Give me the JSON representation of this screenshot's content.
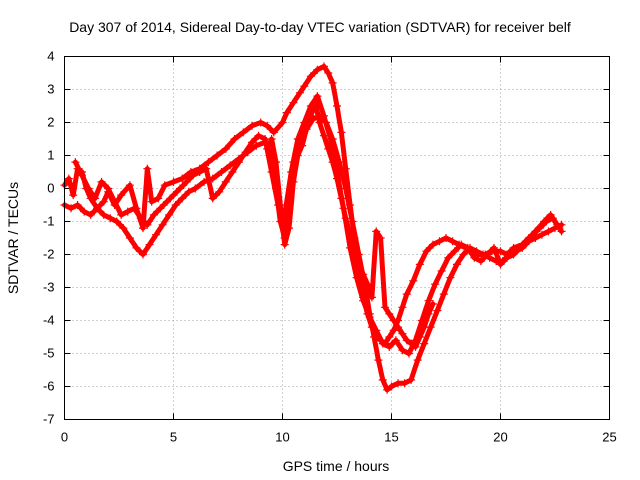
{
  "chart_data": {
    "type": "scatter",
    "title": "Day 307 of 2014, Sidereal Day-to-day VTEC variation (SDTVAR) for receiver belf",
    "xlabel": "GPS time / hours",
    "ylabel": "SDTVAR / TECUs",
    "xlim": [
      0,
      25
    ],
    "ylim": [
      -7,
      4
    ],
    "xticks": [
      "0",
      "5",
      "10",
      "15",
      "20",
      "25"
    ],
    "yticks": [
      "4",
      "3",
      "2",
      "1",
      "0",
      "-1",
      "-2",
      "-3",
      "-4",
      "-5",
      "-6",
      "-7"
    ],
    "grid": true,
    "marker": "plus",
    "color": "#ff0000",
    "series": [
      {
        "x": [
          0.0,
          0.2,
          0.4,
          0.6,
          0.8,
          1.0,
          1.2,
          1.5,
          1.8,
          2.0,
          2.3,
          2.6,
          3.0,
          3.3,
          3.6,
          3.8,
          4.0,
          4.3,
          4.6,
          5.0,
          5.4,
          5.8,
          6.2,
          6.6,
          7.0,
          7.4,
          7.8,
          8.2,
          8.6,
          9.0,
          9.3,
          9.6,
          10.0,
          10.2,
          10.5,
          10.8,
          11.0,
          11.3,
          11.6,
          11.9,
          12.1,
          12.3,
          12.5,
          12.7,
          12.9,
          13.1,
          13.3,
          13.5,
          13.7,
          13.9,
          14.1,
          14.3,
          14.5,
          14.7,
          14.9,
          15.1,
          15.3,
          15.5,
          15.7,
          16.0,
          16.3,
          16.6,
          16.9,
          17.2,
          17.5,
          17.8,
          18.1,
          18.4,
          18.7,
          19.0,
          19.3,
          19.6,
          20.0,
          20.3,
          20.6,
          21.0,
          21.3,
          21.6,
          22.0,
          22.3,
          22.6,
          22.8
        ],
        "y": [
          0.1,
          0.3,
          -0.2,
          0.6,
          0.5,
          0.0,
          -0.3,
          -0.6,
          -0.4,
          -0.1,
          -0.5,
          -0.2,
          0.1,
          -0.6,
          -1.2,
          0.6,
          -0.4,
          -0.3,
          0.1,
          0.2,
          0.3,
          0.5,
          0.6,
          0.8,
          1.0,
          1.2,
          1.5,
          1.7,
          1.9,
          2.0,
          1.9,
          1.7,
          2.0,
          2.3,
          2.6,
          2.9,
          3.1,
          3.4,
          3.6,
          3.7,
          3.5,
          3.2,
          2.5,
          1.7,
          0.6,
          -0.5,
          -1.5,
          -2.5,
          -3.3,
          -3.8,
          -4.2,
          -4.5,
          -4.6,
          -4.7,
          -4.5,
          -4.3,
          -4.0,
          -3.6,
          -3.2,
          -2.8,
          -2.3,
          -1.9,
          -1.7,
          -1.6,
          -1.5,
          -1.6,
          -1.7,
          -1.8,
          -1.9,
          -2.0,
          -2.0,
          -1.9,
          -1.9,
          -2.0,
          -1.8,
          -1.7,
          -1.5,
          -1.3,
          -1.0,
          -0.8,
          -1.1,
          -1.3
        ]
      },
      {
        "x": [
          0.0,
          0.3,
          0.6,
          0.9,
          1.2,
          1.5,
          1.8,
          2.1,
          2.4,
          2.7,
          3.0,
          3.3,
          3.6,
          3.9,
          4.2,
          4.5,
          4.8,
          5.1,
          5.4,
          5.7,
          6.0,
          6.4,
          6.8,
          7.2,
          7.6,
          8.0,
          8.4,
          8.8,
          9.2,
          9.5,
          9.7,
          9.9,
          10.1,
          10.3,
          10.5,
          10.8,
          11.1,
          11.4,
          11.7,
          12.0,
          12.3,
          12.6,
          12.9,
          13.2,
          13.5,
          13.8,
          14.0,
          14.2,
          14.4,
          14.6,
          14.8,
          15.0,
          15.3,
          15.6,
          15.9,
          16.2,
          16.5,
          16.8,
          17.1,
          17.4,
          17.7,
          18.0,
          18.3,
          18.6,
          18.9,
          19.2,
          19.5,
          19.8,
          20.1,
          20.4,
          20.7,
          21.0,
          21.3,
          21.6,
          21.9,
          22.2,
          22.5,
          22.8
        ],
        "y": [
          -0.5,
          -0.6,
          -0.5,
          -0.7,
          -0.8,
          -0.6,
          -0.8,
          -0.9,
          -1.0,
          -1.2,
          -1.5,
          -1.8,
          -2.0,
          -1.7,
          -1.4,
          -1.1,
          -0.8,
          -0.5,
          -0.3,
          -0.1,
          0.0,
          0.2,
          0.3,
          0.5,
          0.7,
          0.9,
          1.1,
          1.3,
          1.4,
          1.0,
          0.0,
          -1.0,
          -1.5,
          -0.3,
          0.8,
          1.4,
          1.8,
          2.1,
          2.2,
          2.0,
          1.5,
          0.8,
          0.0,
          -1.0,
          -2.0,
          -3.0,
          -3.8,
          -4.5,
          -5.2,
          -5.8,
          -6.1,
          -6.0,
          -5.9,
          -5.9,
          -5.8,
          -5.2,
          -4.7,
          -4.2,
          -3.7,
          -3.2,
          -2.7,
          -2.3,
          -2.0,
          -1.8,
          -1.9,
          -2.0,
          -2.1,
          -2.2,
          -2.2,
          -2.0,
          -1.9,
          -1.8,
          -1.6,
          -1.5,
          -1.4,
          -1.3,
          -1.2,
          -1.1
        ]
      },
      {
        "x": [
          0.5,
          0.8,
          1.1,
          1.4,
          1.7,
          2.0,
          2.3,
          2.6,
          2.9,
          3.2,
          3.5,
          3.8,
          4.1,
          4.4,
          4.7,
          5.0,
          5.3,
          5.6,
          5.9,
          6.2,
          6.5,
          6.8,
          7.1,
          7.4,
          7.7,
          8.0,
          8.3,
          8.6,
          8.9,
          9.2,
          9.5,
          9.8,
          10.1,
          10.4,
          10.7,
          11.0,
          11.3,
          11.6,
          11.9,
          12.2,
          12.5,
          12.8,
          13.1,
          13.4,
          13.7,
          14.0,
          14.3,
          14.6,
          14.9,
          15.2,
          15.5,
          15.8,
          16.1,
          16.4,
          16.7,
          17.0,
          17.3,
          17.6,
          17.9,
          18.2,
          18.5,
          18.8,
          19.1,
          19.4,
          19.7,
          20.0,
          20.3,
          20.6,
          20.9,
          21.2,
          21.5,
          21.8,
          22.1,
          22.4,
          22.7
        ],
        "y": [
          0.8,
          0.4,
          0.0,
          -0.3,
          0.2,
          0.0,
          -0.4,
          -0.8,
          -0.7,
          -0.6,
          -0.9,
          -1.1,
          -0.8,
          -0.6,
          -0.4,
          -0.2,
          0.0,
          0.2,
          0.4,
          0.5,
          0.6,
          -0.3,
          -0.1,
          0.2,
          0.5,
          0.8,
          1.1,
          1.4,
          1.6,
          1.5,
          0.5,
          -0.5,
          -0.8,
          0.5,
          1.5,
          2.0,
          2.5,
          2.8,
          2.2,
          1.5,
          0.5,
          -0.6,
          -1.8,
          -2.7,
          -3.4,
          -3.9,
          -4.3,
          -4.7,
          -4.8,
          -4.6,
          -4.9,
          -5.0,
          -4.6,
          -4.0,
          -3.4,
          -2.9,
          -2.5,
          -2.1,
          -1.9,
          -1.7,
          -1.8,
          -2.1,
          -2.2,
          -2.0,
          -1.8,
          -2.3,
          -2.1,
          -2.0,
          -1.8,
          -1.6,
          -1.4,
          -1.2,
          -1.0,
          -0.9,
          -1.2
        ]
      },
      {
        "x": [
          9.3,
          9.5,
          9.7,
          9.9,
          10.1,
          10.3,
          10.5,
          10.7,
          10.9,
          11.1,
          11.3,
          11.5,
          11.7,
          11.9,
          12.1,
          12.3,
          12.5,
          12.7,
          12.9,
          13.1,
          13.3,
          13.5,
          13.7,
          13.9,
          14.1,
          14.3,
          14.5,
          14.7,
          14.9,
          15.1,
          15.3,
          15.5,
          15.7,
          15.9,
          16.1,
          16.3,
          16.5,
          16.7,
          16.9
        ],
        "y": [
          1.2,
          1.5,
          0.8,
          -0.5,
          -1.7,
          -1.2,
          0.2,
          1.0,
          1.3,
          1.8,
          2.2,
          2.6,
          2.0,
          1.6,
          1.2,
          0.8,
          0.3,
          -0.3,
          -0.9,
          -1.4,
          -1.9,
          -2.3,
          -2.6,
          -2.9,
          -3.3,
          -1.3,
          -1.5,
          -3.6,
          -3.8,
          -4.0,
          -4.2,
          -4.4,
          -4.6,
          -4.7,
          -4.8,
          -4.5,
          -4.2,
          -3.8,
          -3.5
        ]
      }
    ]
  }
}
